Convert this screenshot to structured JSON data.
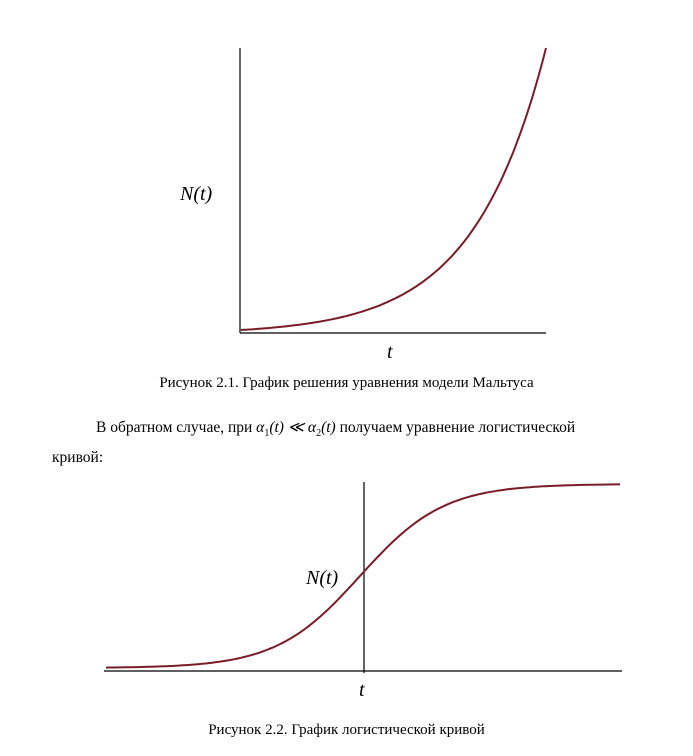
{
  "figure1": {
    "type": "exponential",
    "ylabel": "N(t)",
    "xlabel": "t",
    "caption": "Рисунок 2.1. График решения уравнения модели Мальтуса"
  },
  "paragraph": {
    "before": "В обратном случае, при ",
    "math": {
      "alpha1": "α",
      "sub1": "1",
      "arg1": "(t) ≪ ",
      "alpha2": "α",
      "sub2": "2",
      "arg2": "(t)"
    },
    "after_line1": " получаем уравнение логистической",
    "line2": "кривой:"
  },
  "figure2": {
    "type": "logistic",
    "ylabel": "N(t)",
    "xlabel": "t",
    "caption": "Рисунок 2.2. График логистической кривой"
  },
  "colors": {
    "curve": "#7a1c28",
    "axis": "#000000"
  }
}
